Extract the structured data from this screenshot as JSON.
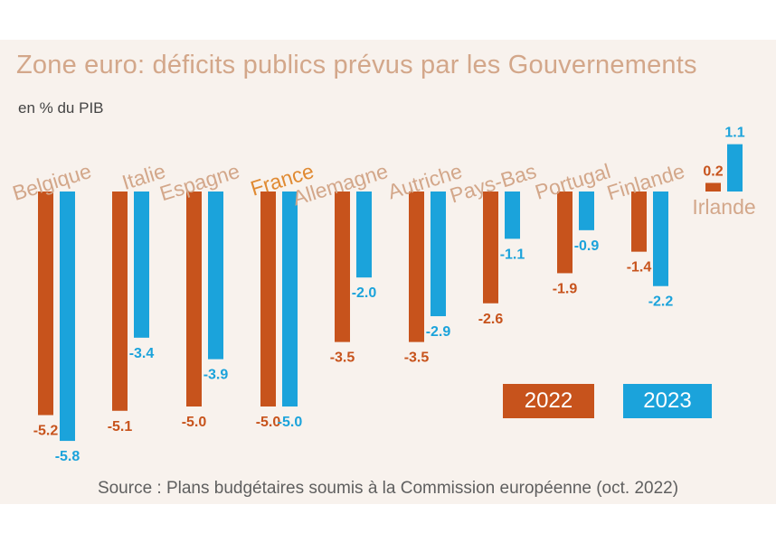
{
  "title": "Zone euro: déficits publics prévus par les Gouvernements",
  "subtitle": "en % du PIB",
  "source": "Source : Plans budgétaires soumis à la Commission européenne (oct. 2022)",
  "colors": {
    "series_2022": "#c7531c",
    "series_2023": "#1ba3db",
    "label_highlight": "#e08a32",
    "label_default": "#d3a78a"
  },
  "chart_data": {
    "type": "bar",
    "title": "Zone euro: déficits publics prévus par les Gouvernements",
    "ylabel": "en % du PIB",
    "xlabel": "",
    "ylim": [
      -6,
      1.2
    ],
    "grid": false,
    "legend_position": "bottom-right",
    "categories": [
      "Belgique",
      "Italie",
      "Espagne",
      "France",
      "Allemagne",
      "Autriche",
      "Pays-Bas",
      "Portugal",
      "Finlande",
      "Irlande"
    ],
    "highlight_category": "France",
    "series": [
      {
        "name": "2022",
        "values": [
          -5.2,
          -5.1,
          -5.0,
          -5.0,
          -3.5,
          -3.5,
          -2.6,
          -1.9,
          -1.4,
          0.2
        ],
        "labels": [
          "-5.2",
          "-5.1",
          "-5.0",
          "-5.0",
          "-3.5",
          "-3.5",
          "-2.6",
          "-1.9",
          "-1.4",
          "0.2"
        ]
      },
      {
        "name": "2023",
        "values": [
          -5.8,
          -3.4,
          -3.9,
          -5.0,
          -2.0,
          -2.9,
          -1.1,
          -0.9,
          -2.2,
          1.1
        ],
        "labels": [
          "-5.8",
          "-3.4",
          "-3.9",
          "-5.0",
          "-2.0",
          "-2.9",
          "-1.1",
          "-0.9",
          "-2.2",
          "1.1"
        ]
      }
    ]
  }
}
